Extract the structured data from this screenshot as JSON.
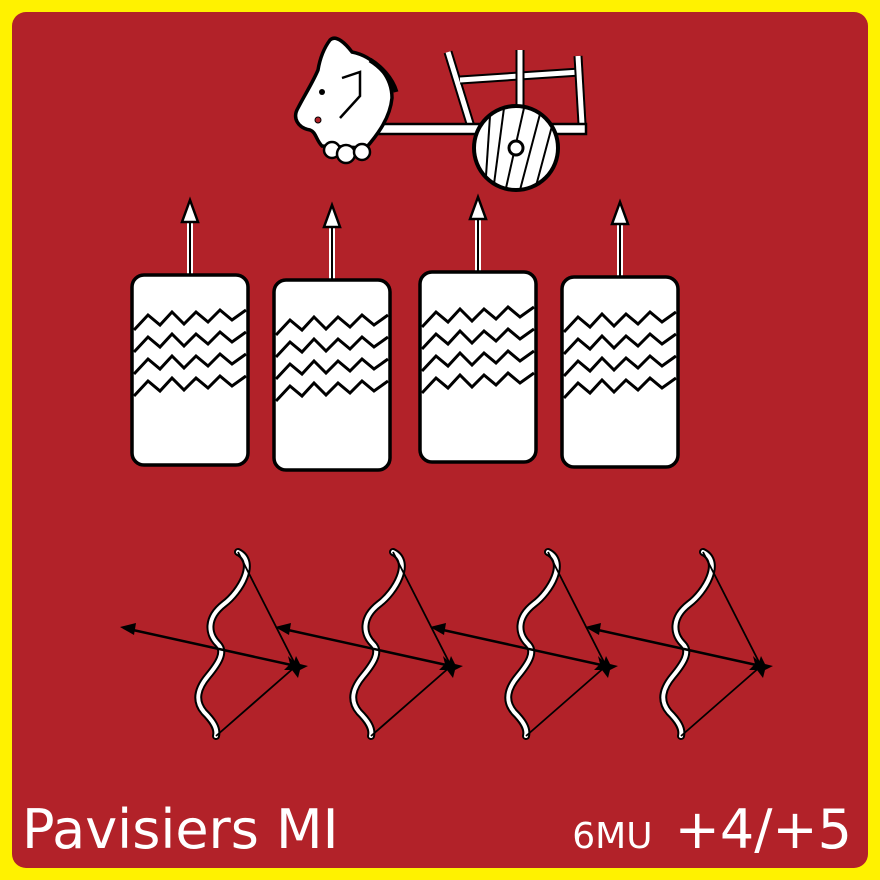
{
  "card": {
    "unit_name": "Pavisiers MI",
    "movement": "6MU",
    "combat_factors": "+4/+5",
    "colors": {
      "border": "#fff200",
      "background": "#b22229",
      "ink": "#ffffff"
    },
    "icons": [
      "horse-chariot-icon",
      "pavise-spear-icon",
      "bow-arrow-icon"
    ],
    "pavise_count": 4,
    "bow_count": 4
  }
}
